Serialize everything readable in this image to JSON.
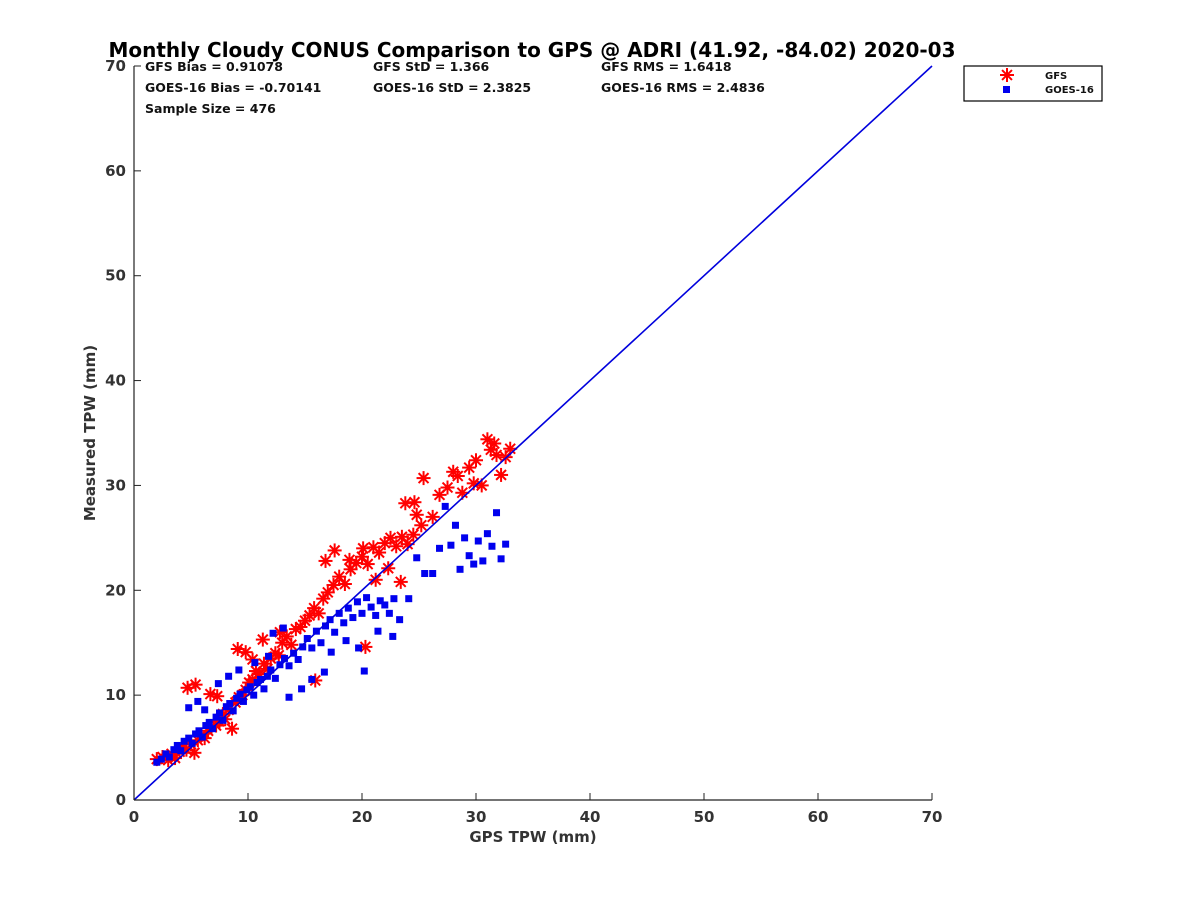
{
  "chart_data": {
    "type": "scatter",
    "title": "Monthly Cloudy CONUS Comparison to GPS @ ADRI (41.92, -84.02) 2020-03",
    "xlabel": "GPS TPW (mm)",
    "ylabel": "Measured TPW (mm)",
    "xlim": [
      0,
      70
    ],
    "ylim": [
      0,
      70
    ],
    "xticks": [
      0,
      10,
      20,
      30,
      40,
      50,
      60,
      70
    ],
    "yticks": [
      0,
      10,
      20,
      30,
      40,
      50,
      60,
      70
    ],
    "grid": false,
    "legend_position": "outside top-right",
    "reference_line": {
      "from": [
        0,
        0
      ],
      "to": [
        70,
        70
      ],
      "color": "#0000dd"
    },
    "stats": {
      "gfs_bias": "GFS Bias = 0.91078",
      "gfs_std": "GFS StD = 1.366",
      "gfs_rms": "GFS RMS = 1.6418",
      "goes_bias": "GOES-16 Bias = -0.70141",
      "goes_std": "GOES-16 StD = 2.3825",
      "goes_rms": "GOES-16 RMS = 2.4836",
      "sample_size": "Sample Size = 476"
    },
    "series": [
      {
        "name": "GFS",
        "marker": "asterisk",
        "color": "#ff0000",
        "points": [
          [
            2.0,
            3.9
          ],
          [
            2.5,
            4.1
          ],
          [
            3.0,
            3.8
          ],
          [
            3.3,
            4.4
          ],
          [
            3.6,
            4.0
          ],
          [
            4.0,
            4.6
          ],
          [
            4.3,
            5.0
          ],
          [
            4.6,
            4.8
          ],
          [
            5.0,
            5.3
          ],
          [
            5.3,
            4.5
          ],
          [
            5.6,
            5.7
          ],
          [
            5.9,
            6.2
          ],
          [
            6.2,
            5.9
          ],
          [
            6.5,
            6.6
          ],
          [
            6.8,
            7.0
          ],
          [
            7.2,
            7.1
          ],
          [
            7.5,
            7.5
          ],
          [
            7.8,
            8.2
          ],
          [
            8.0,
            7.7
          ],
          [
            8.3,
            8.6
          ],
          [
            8.6,
            6.8
          ],
          [
            8.9,
            9.3
          ],
          [
            9.2,
            9.8
          ],
          [
            9.5,
            10.0
          ],
          [
            9.8,
            10.5
          ],
          [
            10.1,
            11.2
          ],
          [
            10.4,
            11.5
          ],
          [
            10.7,
            12.3
          ],
          [
            11.0,
            12.0
          ],
          [
            11.4,
            13.0
          ],
          [
            11.7,
            12.5
          ],
          [
            12.0,
            13.5
          ],
          [
            12.4,
            14.0
          ],
          [
            12.7,
            13.8
          ],
          [
            13.0,
            15.0
          ],
          [
            13.4,
            15.6
          ],
          [
            13.8,
            14.8
          ],
          [
            14.2,
            16.3
          ],
          [
            14.6,
            16.5
          ],
          [
            15.0,
            17.1
          ],
          [
            15.4,
            17.6
          ],
          [
            15.8,
            18.3
          ],
          [
            16.2,
            17.8
          ],
          [
            16.6,
            19.2
          ],
          [
            17.0,
            19.8
          ],
          [
            17.5,
            20.5
          ],
          [
            18.0,
            21.3
          ],
          [
            18.5,
            20.6
          ],
          [
            19.0,
            22.0
          ],
          [
            19.5,
            22.6
          ],
          [
            20.0,
            23.2
          ],
          [
            20.5,
            22.5
          ],
          [
            21.0,
            24.1
          ],
          [
            21.5,
            23.6
          ],
          [
            22.0,
            24.5
          ],
          [
            22.5,
            25.0
          ],
          [
            23.0,
            24.2
          ],
          [
            23.5,
            25.1
          ],
          [
            24.0,
            24.4
          ],
          [
            24.5,
            25.3
          ],
          [
            4.7,
            10.7
          ],
          [
            5.4,
            11.0
          ],
          [
            6.7,
            10.1
          ],
          [
            7.3,
            9.9
          ],
          [
            9.1,
            14.4
          ],
          [
            9.8,
            14.1
          ],
          [
            10.4,
            13.4
          ],
          [
            11.3,
            15.3
          ],
          [
            12.8,
            16.0
          ],
          [
            15.9,
            11.4
          ],
          [
            16.8,
            22.8
          ],
          [
            17.6,
            23.8
          ],
          [
            18.9,
            22.9
          ],
          [
            20.1,
            24.0
          ],
          [
            20.3,
            14.6
          ],
          [
            21.2,
            21.0
          ],
          [
            22.3,
            22.1
          ],
          [
            23.4,
            20.8
          ],
          [
            24.8,
            27.2
          ],
          [
            25.2,
            26.2
          ],
          [
            23.8,
            28.3
          ],
          [
            24.6,
            28.4
          ],
          [
            25.4,
            30.7
          ],
          [
            26.2,
            27.0
          ],
          [
            26.8,
            29.1
          ],
          [
            27.5,
            29.8
          ],
          [
            28.0,
            31.3
          ],
          [
            28.4,
            30.9
          ],
          [
            28.8,
            29.3
          ],
          [
            29.4,
            31.7
          ],
          [
            30.0,
            32.4
          ],
          [
            30.5,
            30.0
          ],
          [
            31.0,
            34.4
          ],
          [
            31.3,
            33.4
          ],
          [
            31.8,
            32.9
          ],
          [
            32.2,
            31.0
          ],
          [
            32.6,
            32.7
          ],
          [
            33.0,
            33.5
          ],
          [
            29.8,
            30.2
          ],
          [
            31.6,
            34.0
          ]
        ]
      },
      {
        "name": "GOES-16",
        "marker": "square",
        "color": "#0000ee",
        "points": [
          [
            2.0,
            3.6
          ],
          [
            2.4,
            3.9
          ],
          [
            2.8,
            4.4
          ],
          [
            3.1,
            4.1
          ],
          [
            3.5,
            4.8
          ],
          [
            3.8,
            5.2
          ],
          [
            4.1,
            4.7
          ],
          [
            4.4,
            5.6
          ],
          [
            4.8,
            5.9
          ],
          [
            5.1,
            5.4
          ],
          [
            5.4,
            6.3
          ],
          [
            5.7,
            6.6
          ],
          [
            6.0,
            6.0
          ],
          [
            6.3,
            7.1
          ],
          [
            6.6,
            7.4
          ],
          [
            6.9,
            6.8
          ],
          [
            7.2,
            7.9
          ],
          [
            7.5,
            8.3
          ],
          [
            7.8,
            7.6
          ],
          [
            8.1,
            8.9
          ],
          [
            8.4,
            9.2
          ],
          [
            8.7,
            8.5
          ],
          [
            9.0,
            9.7
          ],
          [
            9.3,
            10.1
          ],
          [
            9.6,
            9.4
          ],
          [
            9.9,
            10.5
          ],
          [
            10.2,
            10.8
          ],
          [
            10.5,
            10.0
          ],
          [
            10.8,
            11.2
          ],
          [
            11.1,
            11.5
          ],
          [
            11.4,
            10.6
          ],
          [
            11.7,
            11.8
          ],
          [
            12.0,
            12.4
          ],
          [
            12.4,
            11.6
          ],
          [
            12.8,
            12.9
          ],
          [
            13.2,
            13.5
          ],
          [
            13.6,
            12.8
          ],
          [
            14.0,
            14.0
          ],
          [
            14.4,
            13.4
          ],
          [
            14.8,
            14.6
          ],
          [
            15.2,
            15.4
          ],
          [
            15.6,
            14.5
          ],
          [
            16.0,
            16.1
          ],
          [
            16.4,
            15.0
          ],
          [
            16.8,
            16.6
          ],
          [
            17.2,
            17.2
          ],
          [
            17.6,
            16.0
          ],
          [
            18.0,
            17.8
          ],
          [
            18.4,
            16.9
          ],
          [
            18.8,
            18.3
          ],
          [
            19.2,
            17.4
          ],
          [
            19.6,
            18.9
          ],
          [
            20.0,
            17.8
          ],
          [
            20.4,
            19.3
          ],
          [
            20.8,
            18.4
          ],
          [
            21.2,
            17.6
          ],
          [
            21.6,
            19.0
          ],
          [
            22.0,
            18.6
          ],
          [
            22.4,
            17.8
          ],
          [
            22.8,
            19.2
          ],
          [
            4.8,
            8.8
          ],
          [
            5.6,
            9.4
          ],
          [
            6.2,
            8.6
          ],
          [
            7.4,
            11.1
          ],
          [
            8.3,
            11.8
          ],
          [
            9.2,
            12.4
          ],
          [
            10.6,
            13.1
          ],
          [
            11.8,
            13.7
          ],
          [
            12.2,
            15.9
          ],
          [
            13.1,
            16.4
          ],
          [
            13.6,
            9.8
          ],
          [
            14.7,
            10.6
          ],
          [
            15.6,
            11.5
          ],
          [
            16.7,
            12.2
          ],
          [
            17.3,
            14.1
          ],
          [
            18.6,
            15.2
          ],
          [
            19.7,
            14.5
          ],
          [
            20.2,
            12.3
          ],
          [
            21.4,
            16.1
          ],
          [
            22.7,
            15.6
          ],
          [
            23.3,
            17.2
          ],
          [
            24.1,
            19.2
          ],
          [
            24.8,
            23.1
          ],
          [
            25.5,
            21.6
          ],
          [
            26.2,
            21.6
          ],
          [
            26.8,
            24.0
          ],
          [
            27.3,
            28.0
          ],
          [
            27.8,
            24.3
          ],
          [
            28.2,
            26.2
          ],
          [
            28.6,
            22.0
          ],
          [
            29.0,
            25.0
          ],
          [
            29.4,
            23.3
          ],
          [
            29.8,
            22.5
          ],
          [
            30.2,
            24.7
          ],
          [
            30.6,
            22.8
          ],
          [
            31.0,
            25.4
          ],
          [
            31.4,
            24.2
          ],
          [
            31.8,
            27.4
          ],
          [
            32.2,
            23.0
          ],
          [
            32.6,
            24.4
          ]
        ]
      }
    ]
  }
}
